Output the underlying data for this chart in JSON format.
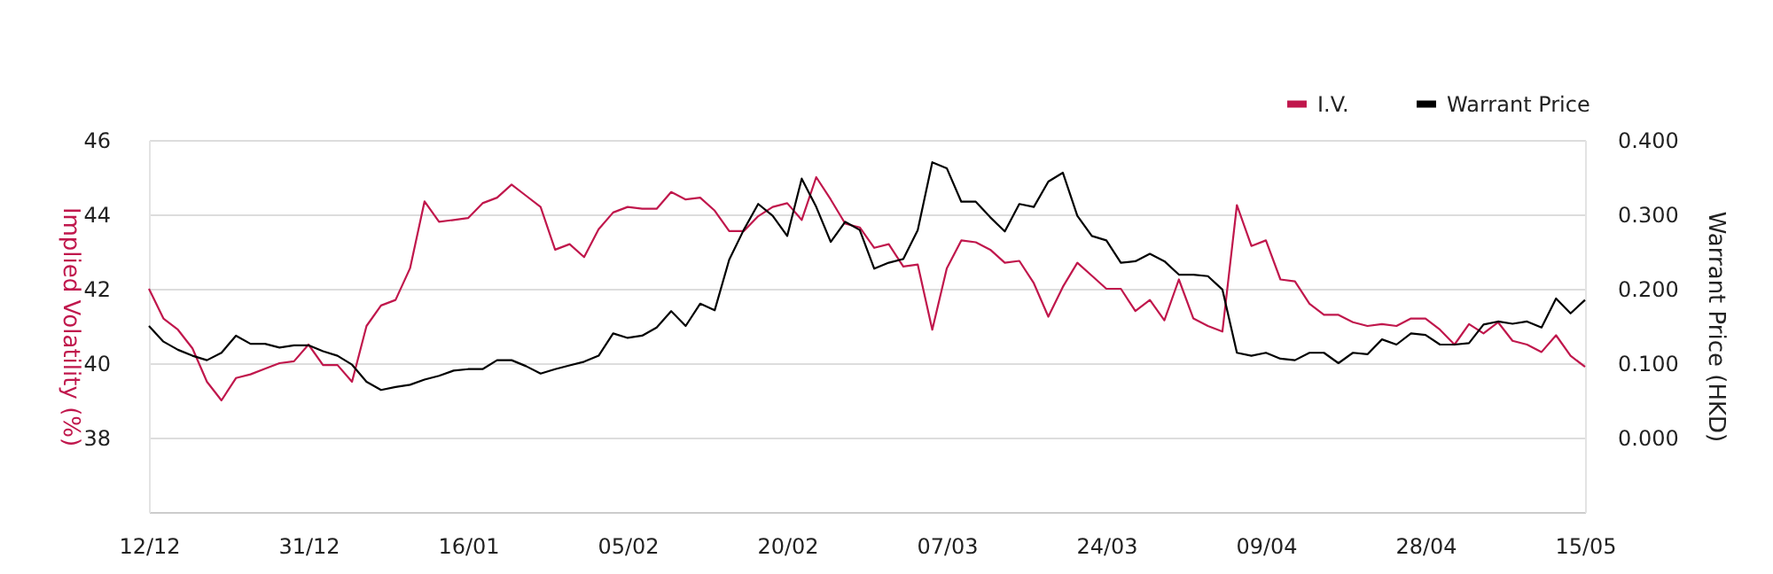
{
  "chart_data": {
    "type": "line",
    "categories": [
      "12/12",
      null,
      null,
      null,
      null,
      null,
      null,
      null,
      null,
      null,
      null,
      "31/12",
      null,
      null,
      null,
      null,
      null,
      null,
      null,
      null,
      null,
      null,
      "16/01",
      null,
      null,
      null,
      null,
      null,
      null,
      null,
      null,
      null,
      null,
      "05/02",
      null,
      null,
      null,
      null,
      null,
      null,
      null,
      null,
      null,
      null,
      "20/02",
      null,
      null,
      null,
      null,
      null,
      null,
      null,
      null,
      null,
      null,
      "07/03",
      null,
      null,
      null,
      null,
      null,
      null,
      null,
      null,
      null,
      null,
      "24/03",
      null,
      null,
      null,
      null,
      null,
      null,
      null,
      null,
      null,
      null,
      "09/04",
      null,
      null,
      null,
      null,
      null,
      null,
      null,
      null,
      null,
      null,
      "28/04",
      null,
      null,
      null,
      null,
      null,
      null,
      null,
      null,
      null,
      null,
      "15/05"
    ],
    "series": [
      {
        "name": "I.V.",
        "color": "#c0174c",
        "values": [
          42.0,
          41.2,
          40.9,
          40.4,
          39.5,
          39.0,
          39.6,
          39.7,
          39.85,
          40.0,
          40.05,
          40.5,
          39.95,
          39.95,
          39.5,
          41.0,
          41.55,
          41.7,
          42.55,
          44.35,
          43.8,
          43.85,
          43.9,
          44.3,
          44.45,
          44.8,
          44.5,
          44.2,
          43.05,
          43.2,
          42.85,
          43.6,
          44.05,
          44.2,
          44.15,
          44.15,
          44.6,
          44.4,
          44.45,
          44.1,
          43.55,
          43.55,
          43.95,
          44.2,
          44.3,
          43.85,
          45.0,
          44.4,
          43.75,
          43.65,
          43.1,
          43.2,
          42.6,
          42.65,
          40.9,
          42.55,
          43.3,
          43.25,
          43.05,
          42.7,
          42.75,
          42.15,
          41.25,
          42.05,
          42.7,
          42.35,
          42.0,
          42.0,
          41.4,
          41.7,
          41.15,
          42.25,
          41.2,
          41.0,
          40.85,
          44.25,
          43.15,
          43.3,
          42.25,
          42.2,
          41.6,
          41.3,
          41.3,
          41.1,
          41.0,
          41.05,
          41.0,
          41.2,
          41.2,
          40.9,
          40.5,
          41.05,
          40.8,
          41.1,
          40.6,
          40.5,
          40.3,
          40.75,
          40.2,
          39.9
        ]
      },
      {
        "name": "Warrant Price",
        "color": "#000000",
        "axis": "y2",
        "values": [
          0.15,
          0.129,
          0.118,
          0.11,
          0.104,
          0.114,
          0.137,
          0.126,
          0.126,
          0.121,
          0.124,
          0.124,
          0.116,
          0.11,
          0.098,
          0.075,
          0.064,
          0.068,
          0.071,
          0.078,
          0.083,
          0.09,
          0.092,
          0.092,
          0.104,
          0.104,
          0.096,
          0.086,
          0.092,
          0.097,
          0.102,
          0.11,
          0.14,
          0.134,
          0.137,
          0.148,
          0.17,
          0.15,
          0.18,
          0.171,
          0.239,
          0.279,
          0.314,
          0.298,
          0.271,
          0.348,
          0.31,
          0.263,
          0.29,
          0.279,
          0.227,
          0.235,
          0.24,
          0.279,
          0.37,
          0.362,
          0.317,
          0.317,
          0.296,
          0.277,
          0.314,
          0.31,
          0.344,
          0.356,
          0.298,
          0.271,
          0.265,
          0.235,
          0.237,
          0.247,
          0.237,
          0.219,
          0.219,
          0.217,
          0.199,
          0.114,
          0.11,
          0.114,
          0.106,
          0.104,
          0.114,
          0.114,
          0.1,
          0.114,
          0.112,
          0.132,
          0.125,
          0.14,
          0.138,
          0.125,
          0.125,
          0.127,
          0.152,
          0.156,
          0.153,
          0.156,
          0.148,
          0.187,
          0.167,
          0.185
        ]
      }
    ],
    "ylabel": "Implied Volatility (%)",
    "y2label": "Warrant Price (HKD)",
    "ylim": [
      36,
      46
    ],
    "yticks": [
      38,
      40,
      42,
      44,
      46
    ],
    "y2lim": [
      -0.1,
      0.4
    ],
    "y2ticks": [
      {
        "value": 0,
        "label": "0.000"
      },
      {
        "value": 0.1,
        "label": "0.100"
      },
      {
        "value": 0.2,
        "label": "0.200"
      },
      {
        "value": 0.3,
        "label": "0.300"
      },
      {
        "value": 0.4,
        "label": "0.400"
      }
    ],
    "grid": "y",
    "legend": "top right",
    "line_style": "solid",
    "marker": "none"
  }
}
